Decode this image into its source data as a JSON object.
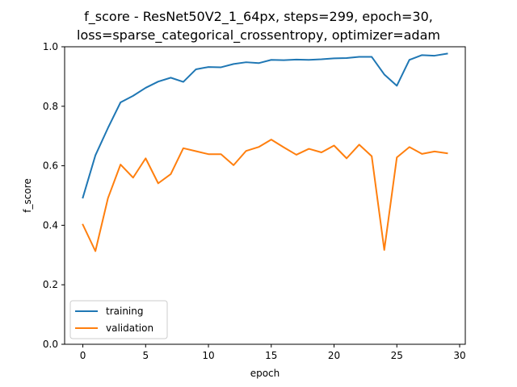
{
  "chart_data": {
    "type": "line",
    "title_lines": [
      "f_score - ResNet50V2_1_64px, steps=299, epoch=30,",
      "loss=sparse_categorical_crossentropy, optimizer=adam"
    ],
    "xlabel": "epoch",
    "ylabel": "f_score",
    "xlim": [
      -1.45,
      30.45
    ],
    "ylim": [
      0.0,
      1.0
    ],
    "xticks": [
      0,
      5,
      10,
      15,
      20,
      25,
      30
    ],
    "yticks": [
      0.0,
      0.2,
      0.4,
      0.6,
      0.8,
      1.0
    ],
    "ytick_labels": [
      "0.0",
      "0.2",
      "0.4",
      "0.6",
      "0.8",
      "1.0"
    ],
    "grid": false,
    "legend_position": "lower-left",
    "x": [
      0,
      1,
      2,
      3,
      4,
      5,
      6,
      7,
      8,
      9,
      10,
      11,
      12,
      13,
      14,
      15,
      16,
      17,
      18,
      19,
      20,
      21,
      22,
      23,
      24,
      25,
      26,
      27,
      28,
      29
    ],
    "series": [
      {
        "name": "training",
        "color": "#1f77b4",
        "values": [
          0.493,
          0.635,
          0.727,
          0.813,
          0.835,
          0.862,
          0.883,
          0.896,
          0.882,
          0.924,
          0.932,
          0.931,
          0.942,
          0.948,
          0.945,
          0.956,
          0.955,
          0.957,
          0.956,
          0.958,
          0.961,
          0.962,
          0.966,
          0.966,
          0.907,
          0.869,
          0.956,
          0.972,
          0.97,
          0.977
        ]
      },
      {
        "name": "validation",
        "color": "#ff7f0e",
        "values": [
          0.402,
          0.313,
          0.491,
          0.604,
          0.56,
          0.625,
          0.541,
          0.572,
          0.659,
          0.649,
          0.639,
          0.639,
          0.602,
          0.65,
          0.663,
          0.688,
          0.662,
          0.637,
          0.657,
          0.645,
          0.668,
          0.625,
          0.671,
          0.632,
          0.317,
          0.628,
          0.663,
          0.64,
          0.648,
          0.642
        ]
      }
    ]
  }
}
